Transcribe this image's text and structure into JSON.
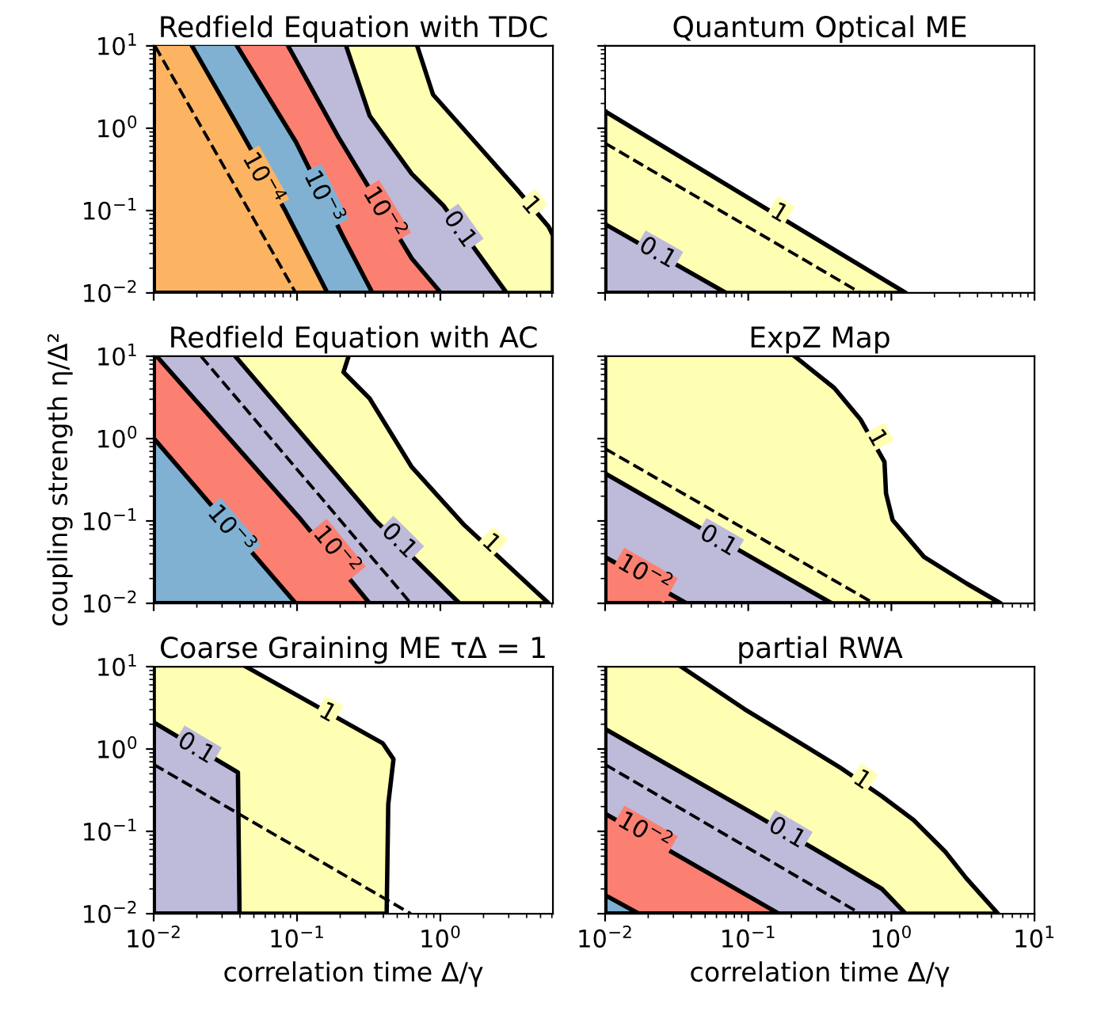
{
  "chart_data": [
    {
      "type": "area",
      "title": "Redfield Equation with TDC",
      "xlim": [
        0.01,
        6.1
      ],
      "ylim": [
        0.01,
        10
      ],
      "log": "xy",
      "tick_labels": "y",
      "xticks": [
        {
          "value": 0.01,
          "label": null
        },
        {
          "value": 0.1,
          "label": null
        },
        {
          "value": 1,
          "label": null
        }
      ],
      "yticks": [
        {
          "value": 0.01,
          "label": "10$^{−2}$"
        },
        {
          "value": 0.1,
          "label": "10$^{−1}$"
        },
        {
          "value": 1,
          "label": "10$^{0}$"
        },
        {
          "value": 10,
          "label": "10$^{1}$"
        }
      ],
      "series": [
        {
          "color": "#ffffb3",
          "x": [
            0.689,
            0.889,
            1.75,
            3.44,
            5.7,
            6.1,
            6.1,
            0.01,
            0.01
          ],
          "values": [
            10,
            2.56,
            0.678,
            0.179,
            0.0636,
            0.05,
            0.01,
            0.01,
            10
          ]
        },
        {
          "color": "#bebada",
          "x": [
            0.22,
            0.321,
            0.632,
            1.05,
            2.9,
            0.01,
            0.01
          ],
          "values": [
            10,
            1.42,
            0.279,
            0.115,
            0.01,
            0.01,
            10
          ]
        },
        {
          "color": "#fb8072",
          "x": [
            0.0866,
            0.194,
            0.632,
            1.01,
            0.01,
            0.01
          ],
          "values": [
            10,
            0.785,
            0.0262,
            0.01,
            0.01,
            10
          ]
        },
        {
          "color": "#80b1d3",
          "x": [
            0.0381,
            0.0984,
            0.211,
            0.336,
            0.01,
            0.01
          ],
          "values": [
            10,
            0.678,
            0.047,
            0.01,
            0.01,
            10
          ]
        },
        {
          "color": "#fdb462",
          "x": [
            0.0185,
            0.0387,
            0.083,
            0.163,
            0.01,
            0.01
          ],
          "values": [
            10,
            1.06,
            0.099,
            0.01,
            0.01,
            10
          ]
        },
        {
          "type": "line",
          "line_style": "dashed",
          "color": "#000000",
          "x": [
            0.0102,
            0.0317,
            0.098
          ],
          "values": [
            10,
            0.316,
            0.01
          ]
        }
      ],
      "annotations": [
        {
          "text": "10$^{−4}$",
          "x": 0.0567,
          "y": 0.24
        },
        {
          "text": "10$^{−3}$",
          "x": 0.15,
          "y": 0.143
        },
        {
          "text": "10$^{−2}$",
          "x": 0.397,
          "y": 0.092
        },
        {
          "text": "0.1",
          "x": 1.36,
          "y": 0.059
        },
        {
          "text": "1",
          "x": 4.25,
          "y": 0.115
        }
      ]
    },
    {
      "type": "area",
      "title": "Quantum Optical ME",
      "xlim": [
        0.01,
        10
      ],
      "ylim": [
        0.01,
        10
      ],
      "log": "xy",
      "tick_labels": false,
      "xticks": [
        {
          "value": 0.01,
          "label": null
        },
        {
          "value": 0.1,
          "label": null
        },
        {
          "value": 1,
          "label": null
        },
        {
          "value": 10,
          "label": null
        }
      ],
      "yticks": [
        {
          "value": 0.01,
          "label": null
        },
        {
          "value": 0.1,
          "label": null
        },
        {
          "value": 1,
          "label": null
        },
        {
          "value": 10,
          "label": null
        }
      ],
      "series": [
        {
          "color": "#ffffb3",
          "x": [
            0.01,
            1.26,
            0.01,
            0.01
          ],
          "values": [
            1.6,
            0.01,
            0.01,
            1.6
          ]
        },
        {
          "color": "#bebada",
          "x": [
            0.01,
            0.07,
            0.01,
            0.01
          ],
          "values": [
            0.0684,
            0.01,
            0.01,
            0.0684
          ]
        },
        {
          "type": "line",
          "line_style": "dashed",
          "color": "#000000",
          "x": [
            0.01,
            0.0782,
            0.61
          ],
          "values": [
            0.658,
            0.0811,
            0.01
          ]
        }
      ],
      "annotations": [
        {
          "text": "1",
          "x": 0.164,
          "y": 0.092
        },
        {
          "text": "0.1",
          "x": 0.0232,
          "y": 0.0303
        }
      ]
    },
    {
      "type": "area",
      "title": "Redfield Equation with AC",
      "ylabel": "coupling strength η/Δ²",
      "xlim": [
        0.01,
        6.1
      ],
      "ylim": [
        0.01,
        10
      ],
      "log": "xy",
      "tick_labels": "y",
      "xticks": [
        {
          "value": 0.01,
          "label": null
        },
        {
          "value": 0.1,
          "label": null
        },
        {
          "value": 1,
          "label": null
        }
      ],
      "yticks": [
        {
          "value": 0.01,
          "label": "10$^{−2}$"
        },
        {
          "value": 0.1,
          "label": "10$^{−1}$"
        },
        {
          "value": 1,
          "label": "10$^{0}$"
        },
        {
          "value": 10,
          "label": "10$^{1}$"
        }
      ],
      "series": [
        {
          "color": "#ffffb3",
          "x": [
            0.229,
            0.211,
            0.321,
            0.632,
            1.47,
            5.7,
            0.01,
            0.01
          ],
          "values": [
            10,
            6.42,
            3.07,
            0.451,
            0.0889,
            0.01,
            0.01,
            10
          ]
        },
        {
          "color": "#bebada",
          "x": [
            0.0371,
            0.35,
            1.36,
            0.01,
            0.01
          ],
          "values": [
            10,
            0.103,
            0.01,
            0.01,
            10
          ]
        },
        {
          "color": "#fb8072",
          "x": [
            0.0105,
            0.107,
            0.321,
            0.01,
            0.01
          ],
          "values": [
            10,
            0.103,
            0.01,
            0.01,
            10
          ]
        },
        {
          "color": "#80b1d3",
          "x": [
            0.01,
            0.098,
            0.01,
            0.01
          ],
          "values": [
            1.01,
            0.01,
            0.01,
            1.01
          ]
        },
        {
          "type": "line",
          "line_style": "dashed",
          "color": "#000000",
          "x": [
            0.0214,
            0.622
          ],
          "values": [
            10,
            0.01
          ]
        }
      ],
      "annotations": [
        {
          "text": "10$^{−3}$",
          "x": 0.0341,
          "y": 0.0767
        },
        {
          "text": "10$^{−2}$",
          "x": 0.185,
          "y": 0.0425
        },
        {
          "text": "0.1",
          "x": 0.513,
          "y": 0.057
        },
        {
          "text": "1",
          "x": 2.25,
          "y": 0.053
        }
      ]
    },
    {
      "type": "area",
      "title": "ExpZ Map",
      "xlim": [
        0.01,
        10
      ],
      "ylim": [
        0.01,
        10
      ],
      "log": "xy",
      "tick_labels": false,
      "xticks": [
        {
          "value": 0.01,
          "label": null
        },
        {
          "value": 0.1,
          "label": null
        },
        {
          "value": 1,
          "label": null
        },
        {
          "value": 10,
          "label": null
        }
      ],
      "yticks": [
        {
          "value": 0.01,
          "label": null
        },
        {
          "value": 0.1,
          "label": null
        },
        {
          "value": 1,
          "label": null
        },
        {
          "value": 10,
          "label": null
        }
      ],
      "series": [
        {
          "color": "#ffffb3",
          "x": [
            0.211,
            0.399,
            0.61,
            0.895,
            0.918,
            1.02,
            1.69,
            3.34,
            5.8,
            0.01,
            0.01
          ],
          "values": [
            10,
            4.12,
            1.7,
            0.522,
            0.215,
            0.103,
            0.0366,
            0.0175,
            0.01,
            0.01,
            10
          ]
        },
        {
          "color": "#bebada",
          "x": [
            0.01,
            0.383,
            0.01,
            0.01
          ],
          "values": [
            0.378,
            0.01,
            0.01,
            0.378
          ]
        },
        {
          "color": "#fb8072",
          "x": [
            0.01,
            0.037,
            0.01,
            0.01
          ],
          "values": [
            0.0366,
            0.01,
            0.01,
            0.0366
          ]
        },
        {
          "type": "line",
          "line_style": "dashed",
          "color": "#000000",
          "x": [
            0.01,
            0.0869,
            0.755
          ],
          "values": [
            0.755,
            0.0869,
            0.01
          ]
        }
      ],
      "annotations": [
        {
          "text": "1",
          "x": 0.789,
          "y": 1.01
        },
        {
          "text": "0.1",
          "x": 0.0617,
          "y": 0.057
        },
        {
          "text": "10$^{−2}$",
          "x": 0.0187,
          "y": 0.0219
        }
      ]
    },
    {
      "type": "area",
      "title": "Coarse Graining ME τΔ = 1",
      "xlabel": "correlation time Δ/γ",
      "xlim": [
        0.01,
        6.1
      ],
      "ylim": [
        0.01,
        10
      ],
      "log": "xy",
      "xticks": [
        {
          "value": 0.01,
          "label": "10$^{−2}$"
        },
        {
          "value": 0.1,
          "label": "10$^{−1}$"
        },
        {
          "value": 1,
          "label": "10$^{0}$"
        }
      ],
      "yticks": [
        {
          "value": 0.01,
          "label": "10$^{−2}$"
        },
        {
          "value": 0.1,
          "label": "10$^{−1}$"
        },
        {
          "value": 1,
          "label": "10$^{0}$"
        },
        {
          "value": 10,
          "label": "10$^{1}$"
        }
      ],
      "series": [
        {
          "color": "#ffffb3",
          "x": [
            0.044,
            0.397,
            0.471,
            0.433,
            0.422,
            0.01,
            0.01
          ],
          "values": [
            10,
            1.17,
            0.752,
            0.214,
            0.01,
            0.01,
            10
          ]
        },
        {
          "color": "#bebada",
          "x": [
            0.01,
            0.0387,
            0.0397,
            0.01,
            0.01
          ],
          "values": [
            2.11,
            0.519,
            0.01,
            0.01,
            2.11
          ]
        },
        {
          "type": "line",
          "line_style": "dashed",
          "color": "#000000",
          "x": [
            0.01,
            0.622
          ],
          "values": [
            0.649,
            0.01
          ]
        }
      ],
      "annotations": [
        {
          "text": "1",
          "x": 0.163,
          "y": 2.72
        },
        {
          "text": "0.1",
          "x": 0.0197,
          "y": 1.01
        }
      ]
    },
    {
      "type": "area",
      "title": "partial RWA",
      "xlabel": "correlation time Δ/γ",
      "xlim": [
        0.01,
        10
      ],
      "ylim": [
        0.01,
        10
      ],
      "log": "xy",
      "tick_labels": "x",
      "xticks": [
        {
          "value": 0.01,
          "label": "10$^{−2}$"
        },
        {
          "value": 0.1,
          "label": "10$^{−1}$"
        },
        {
          "value": 1,
          "label": "10$^{0}$"
        },
        {
          "value": 10,
          "label": "10$^{1}$"
        }
      ],
      "yticks": [
        {
          "value": 0.01,
          "label": null
        },
        {
          "value": 0.1,
          "label": null
        },
        {
          "value": 1,
          "label": null
        },
        {
          "value": 10,
          "label": null
        }
      ],
      "series": [
        {
          "color": "#ffffb3",
          "x": [
            0.034,
            0.094,
            0.435,
            0.859,
            1.43,
            2.38,
            3.34,
            5.56,
            0.01,
            0.01
          ],
          "values": [
            10,
            3.06,
            0.601,
            0.267,
            0.137,
            0.0565,
            0.0269,
            0.01,
            0.01,
            10
          ]
        },
        {
          "color": "#bebada",
          "x": [
            0.01,
            0.112,
            0.337,
            0.859,
            1.26,
            0.01,
            0.01
          ],
          "values": [
            1.75,
            0.159,
            0.0524,
            0.02,
            0.01,
            0.01,
            1.75
          ]
        },
        {
          "color": "#fb8072",
          "x": [
            0.01,
            0.164,
            0.01,
            0.01
          ],
          "values": [
            0.164,
            0.01,
            0.01,
            0.164
          ]
        },
        {
          "color": "#80b1d3",
          "x": [
            0.01,
            0.0172,
            0.01,
            0.01
          ],
          "values": [
            0.0168,
            0.01,
            0.01,
            0.0168
          ]
        },
        {
          "type": "line",
          "line_style": "dashed",
          "color": "#000000",
          "x": [
            0.01,
            0.0782,
            0.61
          ],
          "values": [
            0.649,
            0.0805,
            0.01
          ]
        }
      ],
      "annotations": [
        {
          "text": "1",
          "x": 0.621,
          "y": 0.416
        },
        {
          "text": "0.1",
          "x": 0.186,
          "y": 0.095
        },
        {
          "text": "10$^{−2}$",
          "x": 0.0187,
          "y": 0.095
        }
      ]
    }
  ]
}
